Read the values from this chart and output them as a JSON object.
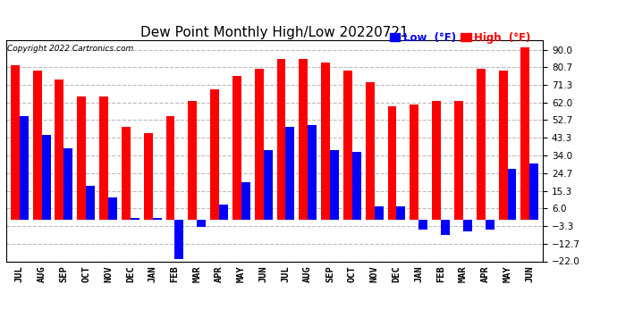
{
  "title": "Dew Point Monthly High/Low 20220721",
  "copyright": "Copyright 2022 Cartronics.com",
  "months": [
    "JUL",
    "AUG",
    "SEP",
    "OCT",
    "NOV",
    "DEC",
    "JAN",
    "FEB",
    "MAR",
    "APR",
    "MAY",
    "JUN",
    "JUL",
    "AUG",
    "SEP",
    "OCT",
    "NOV",
    "DEC",
    "JAN",
    "FEB",
    "MAR",
    "APR",
    "MAY",
    "JUN"
  ],
  "high": [
    82,
    79,
    74,
    65,
    65,
    49,
    46,
    55,
    63,
    69,
    76,
    80,
    85,
    85,
    83,
    79,
    73,
    60,
    61,
    63,
    63,
    80,
    79,
    91
  ],
  "low": [
    55,
    45,
    38,
    18,
    12,
    1,
    1,
    -21,
    -4,
    8,
    20,
    37,
    49,
    50,
    37,
    36,
    7,
    7,
    -5,
    -8,
    -6,
    -5,
    27,
    30
  ],
  "ylim": [
    -22,
    95
  ],
  "yticks": [
    90.0,
    80.7,
    71.3,
    62.0,
    52.7,
    43.3,
    34.0,
    24.7,
    15.3,
    6.0,
    -3.3,
    -12.7,
    -22.0
  ],
  "high_color": "#ff0000",
  "low_color": "#0000ff",
  "background_color": "#ffffff",
  "grid_color": "#bbbbbb",
  "bar_width": 0.4,
  "title_fontsize": 11,
  "tick_fontsize": 7.5,
  "label_fontsize": 8.5
}
